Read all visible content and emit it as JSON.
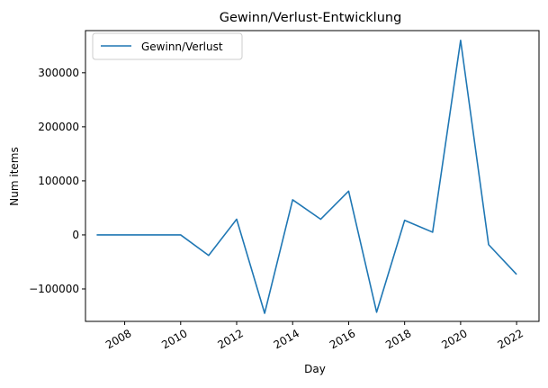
{
  "chart_data": {
    "type": "line",
    "title": "Gewinn/Verlust-Entwicklung",
    "xlabel": "Day",
    "ylabel": "Num items",
    "x": [
      "2007",
      "2008",
      "2009",
      "2010",
      "2011",
      "2012",
      "2013",
      "2014",
      "2015",
      "2016",
      "2017",
      "2018",
      "2019",
      "2020",
      "2021",
      "2022"
    ],
    "series": [
      {
        "name": "Gewinn/Verlust",
        "color": "#1f77b4",
        "values": [
          0,
          0,
          0,
          0,
          -38000,
          29000,
          -145000,
          65000,
          29000,
          81000,
          -143000,
          27000,
          5000,
          360000,
          -18000,
          -73000
        ]
      }
    ],
    "xlim": [
      2006.6,
      2022.8
    ],
    "ylim": [
      -160000,
      378000
    ],
    "x_ticks": [
      "2008",
      "2010",
      "2012",
      "2014",
      "2016",
      "2018",
      "2020",
      "2022"
    ],
    "y_ticks": [
      -100000,
      0,
      100000,
      200000,
      300000
    ],
    "y_tick_labels": [
      "−100000",
      "0",
      "100000",
      "200000",
      "300000"
    ],
    "legend_position": "upper-left",
    "grid": false
  }
}
